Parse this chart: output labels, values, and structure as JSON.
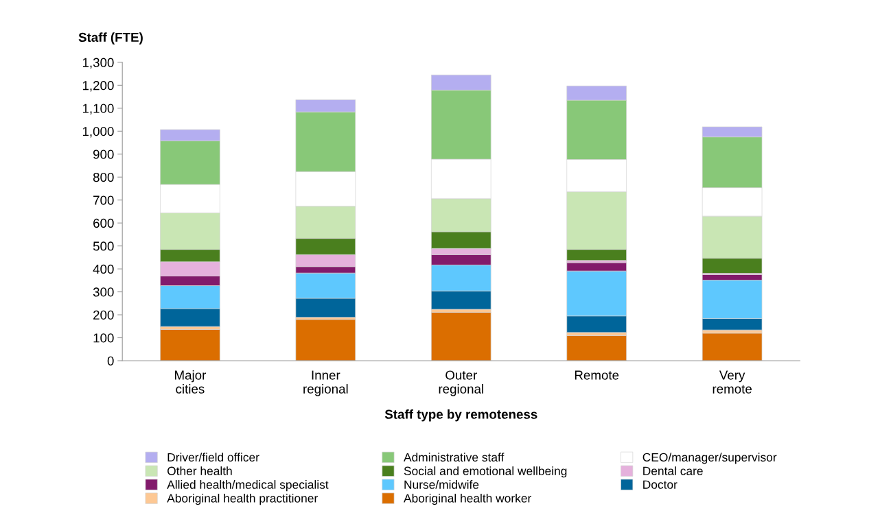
{
  "chart_data": {
    "type": "bar",
    "stacked": true,
    "ylabel": "Staff (FTE)",
    "xlabel": "Staff type by remoteness",
    "categories": [
      "Major\ncities",
      "Inner\nregional",
      "Outer\nregional",
      "Remote",
      "Very\nremote"
    ],
    "ylim": [
      0,
      1300
    ],
    "yticks": [
      0,
      100,
      200,
      300,
      400,
      500,
      600,
      700,
      800,
      900,
      {
        "value": 1000,
        "label": "1,000"
      },
      {
        "value": 1100,
        "label": "1,100"
      },
      {
        "value": 1200,
        "label": "1,200"
      },
      {
        "value": 1300,
        "label": "1,300"
      }
    ],
    "grid": false,
    "legend": "bottom",
    "series": [
      {
        "name": "Aboriginal health worker",
        "color": "#db6e00",
        "values": [
          136,
          180,
          211,
          109,
          120
        ]
      },
      {
        "name": "Aboriginal health practitioner",
        "color": "#fdc894",
        "values": [
          13,
          9,
          13,
          14,
          14
        ]
      },
      {
        "name": "Doctor",
        "color": "#00659a",
        "values": [
          78,
          83,
          80,
          72,
          50
        ]
      },
      {
        "name": "Nurse/midwife",
        "color": "#5ec8fe",
        "values": [
          100,
          110,
          113,
          196,
          167
        ]
      },
      {
        "name": "Allied health/medical specialist",
        "color": "#821a6b",
        "values": [
          42,
          28,
          45,
          36,
          24
        ]
      },
      {
        "name": "Dental care",
        "color": "#e5b1dc",
        "values": [
          62,
          52,
          27,
          10,
          6
        ]
      },
      {
        "name": "Social and emotional wellbeing",
        "color": "#4a7f1e",
        "values": [
          54,
          71,
          73,
          48,
          66
        ]
      },
      {
        "name": "Other health",
        "color": "#c9e6b4",
        "values": [
          159,
          140,
          144,
          251,
          183
        ]
      },
      {
        "name": "CEO/manager/supervisor",
        "color": "#ffffff",
        "values": [
          124,
          151,
          172,
          141,
          124
        ]
      },
      {
        "name": "Administrative staff",
        "color": "#88c878",
        "values": [
          190,
          260,
          301,
          258,
          221
        ]
      },
      {
        "name": "Driver/field officer",
        "color": "#b4aef0",
        "values": [
          49,
          53,
          66,
          62,
          44
        ]
      }
    ]
  }
}
